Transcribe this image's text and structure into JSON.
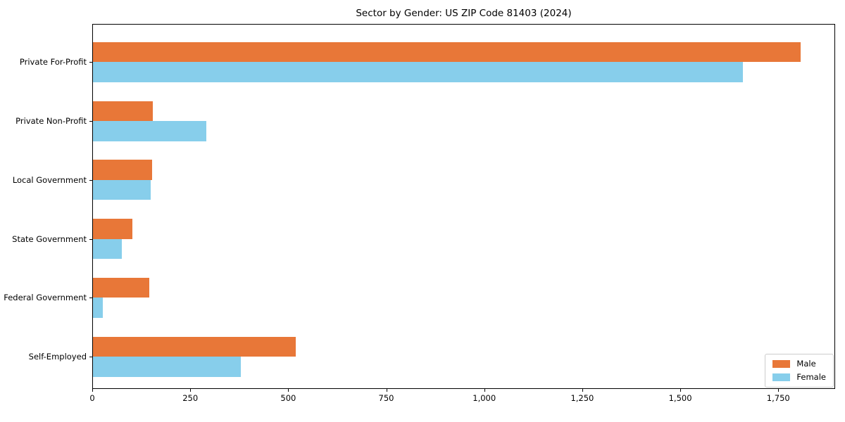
{
  "title": "Sector by Gender: US ZIP Code 81403 (2024)",
  "chart_data": {
    "type": "bar",
    "orientation": "horizontal",
    "title": "Sector by Gender: US ZIP Code 81403 (2024)",
    "categories": [
      "Private For-Profit",
      "Private Non-Profit",
      "Local Government",
      "State Government",
      "Federal Government",
      "Self-Employed"
    ],
    "series": [
      {
        "name": "Male",
        "color": "#e87738",
        "values": [
          1805,
          153,
          151,
          100,
          143,
          517
        ]
      },
      {
        "name": "Female",
        "color": "#87ceeb",
        "values": [
          1658,
          290,
          148,
          73,
          26,
          378
        ]
      }
    ],
    "xlim": [
      0,
      1895
    ],
    "xticks": [
      0,
      250,
      500,
      750,
      1000,
      1250,
      1500,
      1750
    ],
    "xtick_labels": [
      "0",
      "250",
      "500",
      "750",
      "1,000",
      "1,250",
      "1,500",
      "1,750"
    ],
    "xlabel": "",
    "ylabel": "",
    "grid": false,
    "legend_position": "lower right"
  }
}
